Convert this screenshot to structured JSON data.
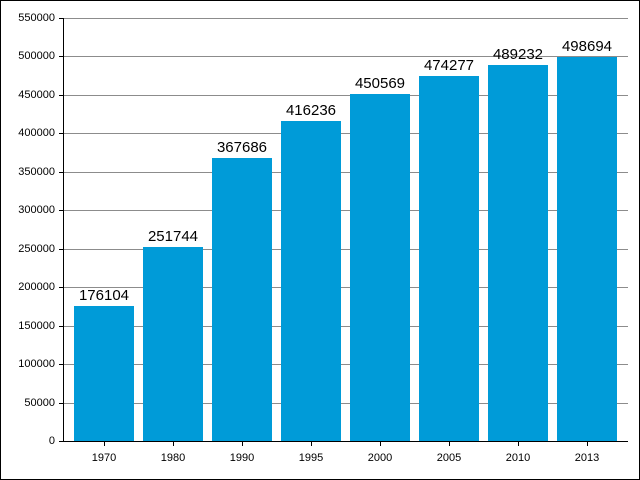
{
  "chart_data": {
    "type": "bar",
    "title": "",
    "xlabel": "",
    "ylabel": "",
    "categories": [
      "1970",
      "1980",
      "1990",
      "1995",
      "2000",
      "2005",
      "2010",
      "2013"
    ],
    "values": [
      176104,
      251744,
      367686,
      416236,
      450569,
      474277,
      489232,
      498694
    ],
    "data_labels": [
      "176104",
      "251744",
      "367686",
      "416236",
      "450569",
      "474277",
      "489232",
      "498694"
    ],
    "ylim": [
      0,
      550000
    ],
    "yticks": [
      "0",
      "50000",
      "100000",
      "150000",
      "200000",
      "250000",
      "300000",
      "350000",
      "400000",
      "450000",
      "500000",
      "550000"
    ],
    "grid": true,
    "legend": null,
    "bar_color": "#009bd8"
  }
}
